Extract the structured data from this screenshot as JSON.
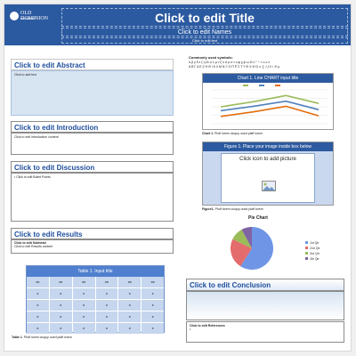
{
  "header": {
    "logo_line1": "OLD DOMINION",
    "logo_line2": "UNIVERSITY",
    "title": "Click to edit Title",
    "names": "Click to edit Names",
    "affiliation": "Click to edit text"
  },
  "abstract": {
    "heading": "Click to edit Abstract",
    "body": "Click to add text"
  },
  "introduction": {
    "heading": "Click to edit Introduction",
    "body": "Click to edit introduction content"
  },
  "discussion": {
    "heading": "Click to edit Discussion",
    "body": "• Click to edit Bullet Points"
  },
  "results": {
    "heading": "Click to edit Results",
    "subhead": "Click to edit Subhead",
    "body": "Click to edit Results content"
  },
  "table": {
    "title": "Table 1. Input title",
    "caption_bold": "Table 1.",
    "caption": " Phdf lorem ciuquy oued plaff lorem",
    "cells": [
      "xx",
      "xx",
      "xx",
      "xx",
      "xx",
      "xx",
      "x",
      "x",
      "x",
      "x",
      "x",
      "x",
      "x",
      "x",
      "x",
      "x",
      "x",
      "x",
      "x",
      "x",
      "x",
      "x",
      "x",
      "x",
      "x",
      "x",
      "x",
      "x",
      "x",
      "x"
    ]
  },
  "symbols": {
    "label": "Commonly used symbols:",
    "row1": "α β γ δ ε ζ η θ ι κ λ μ ν ξ ο π ρ σ τ υ φ χ ψ ω Ω ± ° ÷ × ≤ ≥ ≠",
    "row2": "Α Β Γ Δ Ε Ζ Η Θ Ι Κ Λ Μ Ν Ξ Ο Π Ρ Σ Τ Υ Φ Χ Ψ Ω ∞ ∑ √ ∫ ∂ ≈ ∈ µ"
  },
  "chart_data": [
    {
      "type": "line",
      "title": "Chart 1. Line CHART input title",
      "caption_bold": "Chart 1.",
      "caption": " Phdf lorem ciuquy oued plaff lorem",
      "categories": [
        "",
        "",
        "",
        ""
      ],
      "series": [
        {
          "color": "#9bbb59",
          "values": [
            3.0,
            3.9,
            5.0,
            3.6
          ]
        },
        {
          "color": "#4f81bd",
          "values": [
            2.3,
            3.1,
            4.0,
            2.5
          ]
        },
        {
          "color": "#e46c0a",
          "values": [
            1.3,
            2.1,
            3.1,
            1.4
          ]
        }
      ],
      "ylim": [
        0,
        6
      ]
    },
    {
      "type": "pie",
      "title": "Pie Chart",
      "labels": [
        "1st Qtr",
        "2nd Qtr",
        "3rd Qtr",
        "4th Qtr"
      ],
      "values": [
        59,
        23,
        10,
        8
      ],
      "colors": [
        "#6f95e6",
        "#e46c6c",
        "#9bbb59",
        "#8064a2"
      ]
    }
  ],
  "figure": {
    "title": "Figure 1. Place your image inside box below",
    "placeholder": "Click icon to add picture",
    "caption_bold": "Figure1.",
    "caption": " Phdf lorem ciuquy oued plaff lorem"
  },
  "conclusion": {
    "heading": "Click to edit Conclusion",
    "body": ""
  },
  "references": {
    "heading": "Click to edit References",
    "body": "•"
  },
  "colors": {
    "header": "#2c5aa0",
    "accent": "#1f4e9b"
  }
}
